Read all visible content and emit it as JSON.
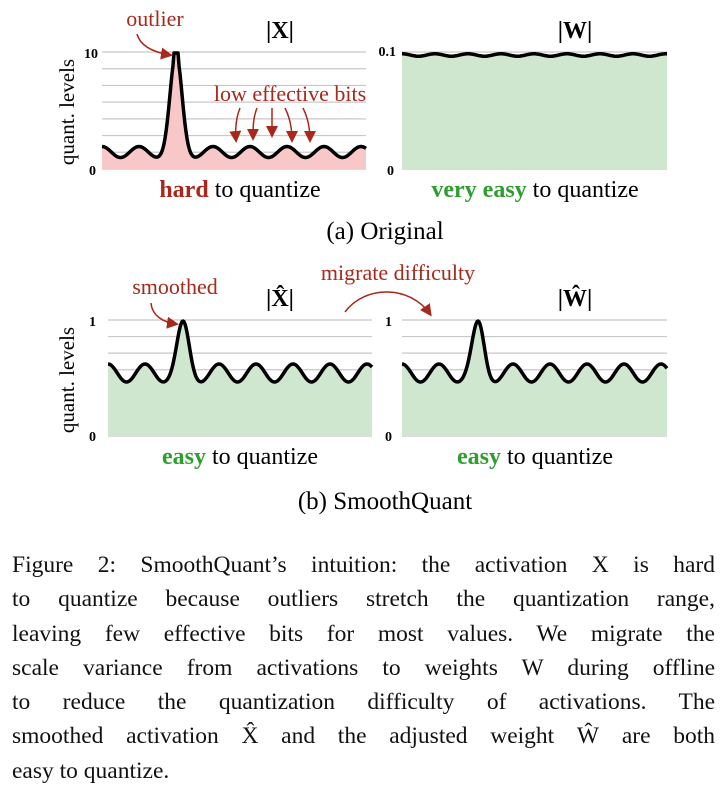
{
  "figure": {
    "ylabel": "quant. levels",
    "panel_a": {
      "label": "(a) Original",
      "x_plot": {
        "title": "|X|",
        "ymax_label": "10",
        "ymin_label": "0",
        "annotation_outlier": "outlier",
        "annotation_bits": "low effective bits",
        "verdict_strong": "hard",
        "verdict_rest": " to quantize",
        "fill_color": "#f8c8c8"
      },
      "w_plot": {
        "title": "|W|",
        "ymax_label": "0.1",
        "ymin_label": "0",
        "verdict_strong": "very easy",
        "verdict_rest": " to quantize",
        "fill_color": "#cfe6cf"
      }
    },
    "panel_b": {
      "label": "(b) SmoothQuant",
      "migrate_label": "migrate difficulty",
      "x_plot": {
        "title": "|X̂|",
        "ymax_label": "1",
        "ymin_label": "0",
        "annotation": "smoothed",
        "verdict_strong": "easy",
        "verdict_rest": " to quantize",
        "fill_color": "#cfe6cf"
      },
      "w_plot": {
        "title": "|Ŵ|",
        "ymax_label": "1",
        "ymin_label": "0",
        "verdict_strong": "easy",
        "verdict_rest": " to quantize",
        "fill_color": "#cfe6cf"
      }
    }
  },
  "caption": {
    "lines": [
      "Figure 2: SmoothQuant’s intuition: the activation X is hard",
      "to quantize because outliers stretch the quantization range,",
      "leaving few effective bits for most values. We migrate the",
      "scale variance from activations to weights W during offline",
      "to reduce the quantization difficulty of activations.  The",
      "smoothed activation X̂ and the adjusted weight Ŵ are both",
      "easy to quantize."
    ]
  },
  "colors": {
    "annotation": "#a8281c",
    "verdict_good": "#2f9e2f",
    "grid": "#c8c8c8"
  }
}
